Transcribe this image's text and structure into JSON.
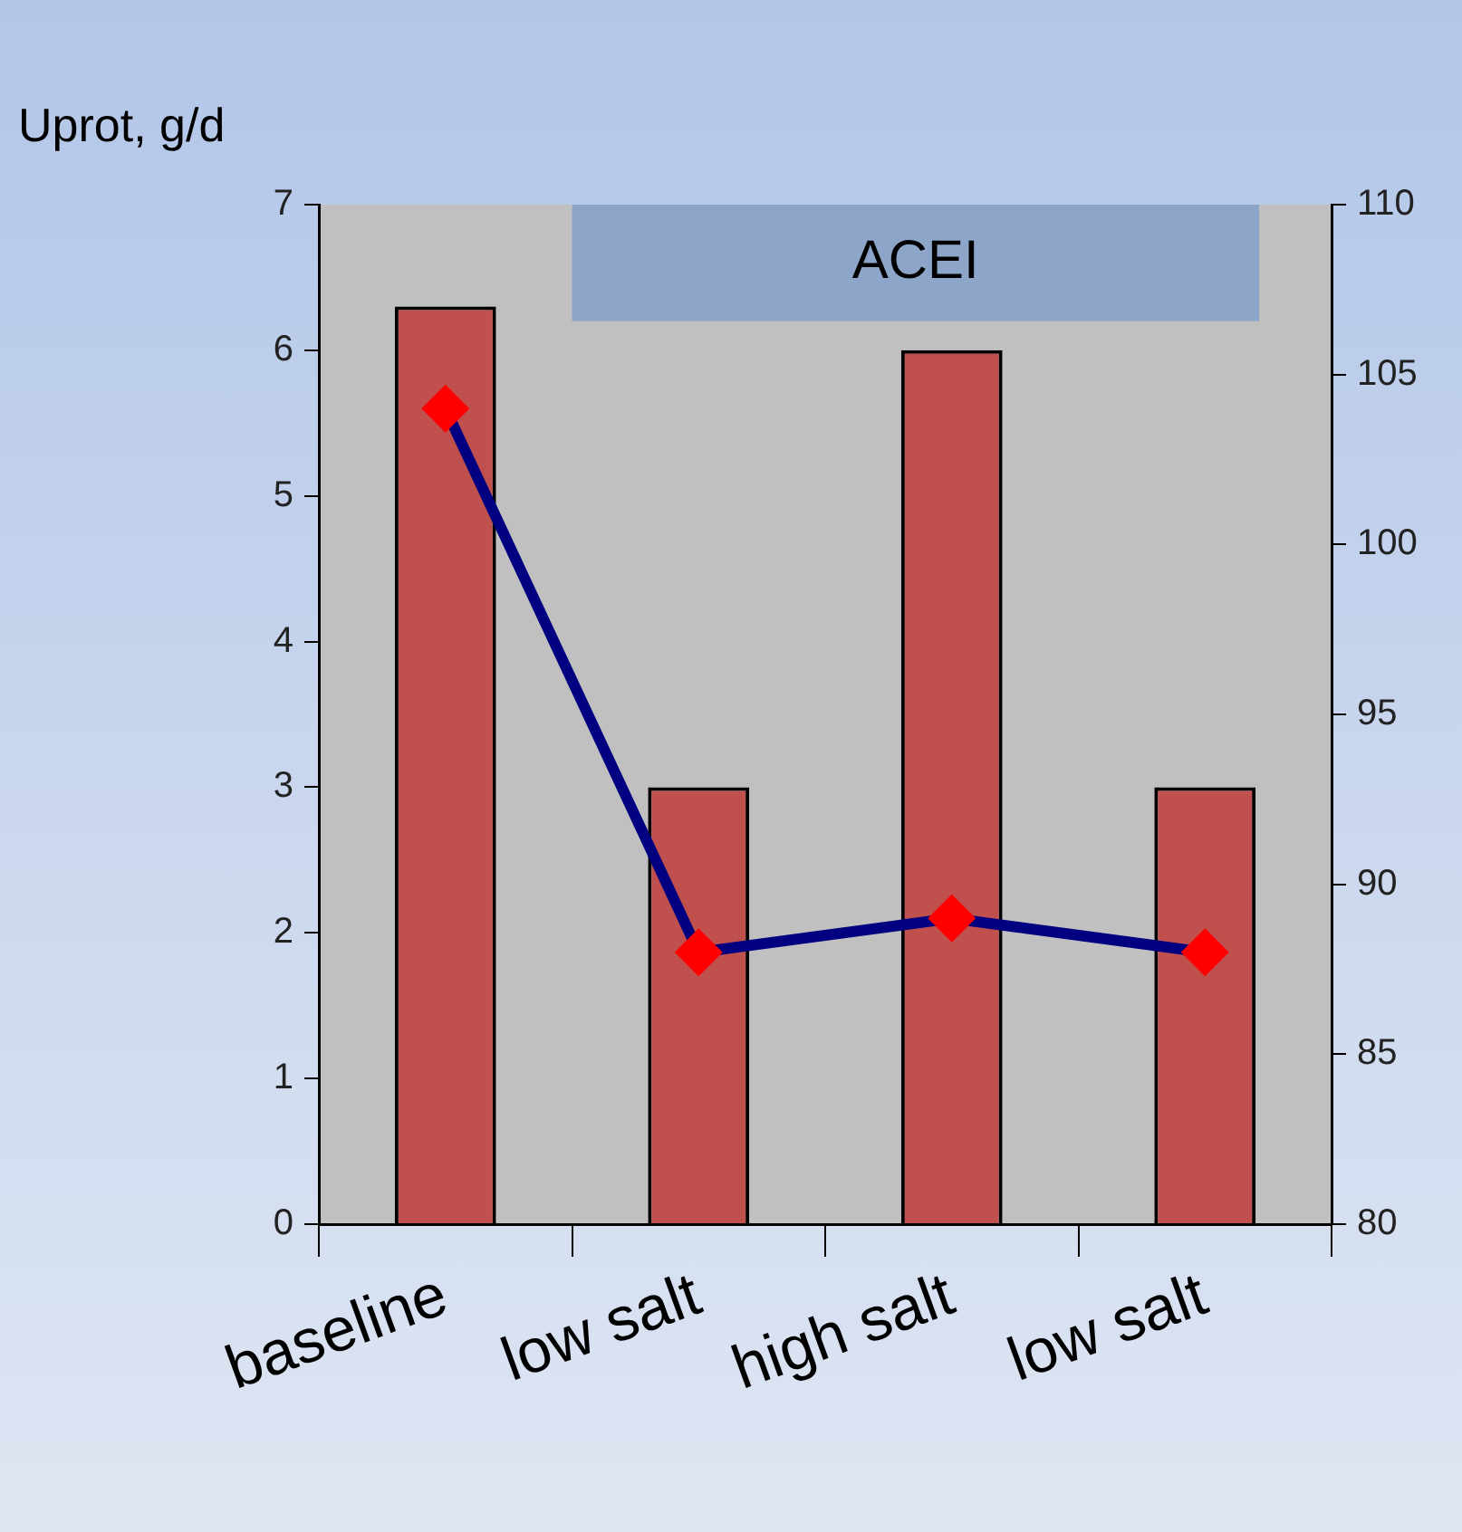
{
  "chart_data": {
    "type": "bar",
    "ylabel": "Uprot, g/d",
    "categories": [
      "baseline",
      "low salt",
      "high salt",
      "low salt"
    ],
    "series": [
      {
        "color": "#c0504d",
        "values": [
          6.3,
          3,
          6,
          3
        ]
      },
      {
        "type": "line",
        "axis": "y2",
        "color": "#000080",
        "values": [
          104,
          88,
          89,
          88
        ]
      }
    ],
    "ylim": [
      0,
      7
    ],
    "yticks": [
      0,
      1,
      2,
      3,
      4,
      5,
      6,
      7
    ],
    "y2lim": [
      80,
      110
    ],
    "y2ticks": [
      80,
      85,
      90,
      95,
      100,
      105,
      110
    ],
    "bands": [
      {
        "axis": "y",
        "from": 6.2,
        "to": 7,
        "label": "ACEI",
        "color": "#8ca5c8"
      }
    ],
    "marker": "diamond",
    "line_style": "solid",
    "grid": false,
    "legend": false
  }
}
